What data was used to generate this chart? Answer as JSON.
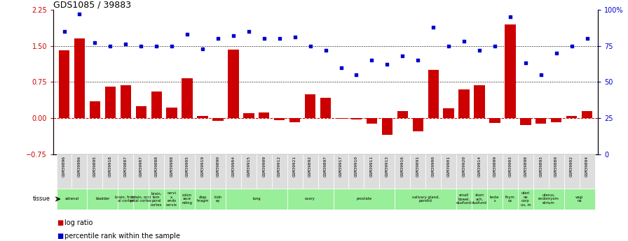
{
  "title": "GDS1085 / 39883",
  "gsm_ids": [
    "GSM39896",
    "GSM39906",
    "GSM39895",
    "GSM39918",
    "GSM39887",
    "GSM39907",
    "GSM39888",
    "GSM39908",
    "GSM39905",
    "GSM39919",
    "GSM39890",
    "GSM39904",
    "GSM39915",
    "GSM39909",
    "GSM39912",
    "GSM39921",
    "GSM39892",
    "GSM39897",
    "GSM39917",
    "GSM39910",
    "GSM39911",
    "GSM39913",
    "GSM39916",
    "GSM39891",
    "GSM39900",
    "GSM39901",
    "GSM39920",
    "GSM39914",
    "GSM39899",
    "GSM39903",
    "GSM39898",
    "GSM39893",
    "GSM39889",
    "GSM39902",
    "GSM39894"
  ],
  "log_ratio": [
    1.4,
    1.65,
    0.35,
    0.65,
    0.68,
    0.25,
    0.55,
    0.22,
    0.82,
    0.04,
    -0.05,
    1.42,
    0.1,
    0.12,
    -0.04,
    -0.08,
    0.5,
    0.42,
    -0.02,
    -0.03,
    -0.12,
    -0.35,
    0.15,
    -0.28,
    1.0,
    0.2,
    0.6,
    0.68,
    -0.1,
    1.95,
    -0.15,
    -0.12,
    -0.08,
    0.05,
    0.15
  ],
  "percentile_pct": [
    85,
    97,
    77,
    75,
    76,
    75,
    75,
    75,
    83,
    73,
    80,
    82,
    85,
    80,
    80,
    81,
    75,
    72,
    60,
    55,
    65,
    62,
    68,
    65,
    88,
    75,
    78,
    72,
    75,
    95,
    63,
    55,
    70,
    75,
    80
  ],
  "tissue_groups": [
    {
      "label": "adrenal",
      "start": 0,
      "end": 1
    },
    {
      "label": "bladder",
      "start": 2,
      "end": 3
    },
    {
      "label": "brain, front\nal cortex",
      "start": 4,
      "end": 4
    },
    {
      "label": "brain, occi\npital cortex",
      "start": 5,
      "end": 5
    },
    {
      "label": "brain,\ntem\nporal\ncortex",
      "start": 6,
      "end": 6
    },
    {
      "label": "cervi\nx,\nendo\ncervix",
      "start": 7,
      "end": 7
    },
    {
      "label": "colon\nasce\nnding",
      "start": 8,
      "end": 8
    },
    {
      "label": "diap\nhragm",
      "start": 9,
      "end": 9
    },
    {
      "label": "kidn\ney",
      "start": 10,
      "end": 10
    },
    {
      "label": "lung",
      "start": 11,
      "end": 14
    },
    {
      "label": "ovary",
      "start": 15,
      "end": 17
    },
    {
      "label": "prostate",
      "start": 18,
      "end": 21
    },
    {
      "label": "salivary gland,\nparotid",
      "start": 22,
      "end": 25
    },
    {
      "label": "small\nbowel,\nduofund",
      "start": 26,
      "end": 26
    },
    {
      "label": "stom\nach,\nduofund",
      "start": 27,
      "end": 27
    },
    {
      "label": "teste\ns",
      "start": 28,
      "end": 28
    },
    {
      "label": "thym\nus",
      "start": 29,
      "end": 29
    },
    {
      "label": "uteri\nne\ncorp\nus, m",
      "start": 30,
      "end": 30
    },
    {
      "label": "uterus,\nendomyom\netrium",
      "start": 31,
      "end": 32
    },
    {
      "label": "vagi\nna",
      "start": 33,
      "end": 34
    }
  ],
  "bar_color": "#cc0000",
  "dot_color": "#0000cc",
  "ylim_left": [
    -0.75,
    2.25
  ],
  "ylim_right": [
    0,
    100
  ],
  "yticks_left": [
    -0.75,
    0,
    0.75,
    1.5,
    2.25
  ],
  "yticks_right": [
    0,
    25,
    50,
    75,
    100
  ],
  "hlines": [
    0.75,
    1.5
  ],
  "zero_line_color": "#cc0000",
  "tissue_color": "#99ee99",
  "gsm_bg_color": "#dddddd",
  "background_color": "#ffffff"
}
